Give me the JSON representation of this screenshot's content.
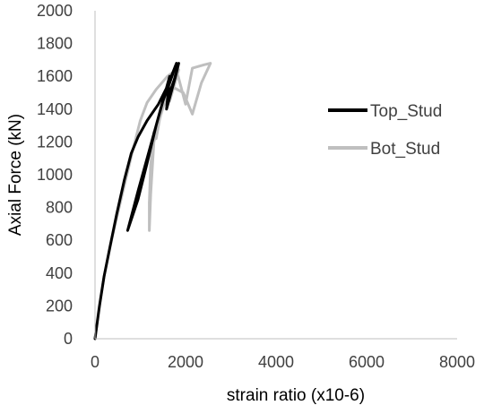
{
  "chart_data": {
    "type": "scatter",
    "title": "",
    "xlabel": "strain ratio (x10-6)",
    "ylabel": "Axial Force (kN)",
    "xlim": [
      0,
      8000
    ],
    "ylim": [
      0,
      2000
    ],
    "x_ticks": [
      0,
      2000,
      4000,
      6000,
      8000
    ],
    "y_ticks": [
      0,
      200,
      400,
      600,
      800,
      1000,
      1200,
      1400,
      1600,
      1800,
      2000
    ],
    "grid": false,
    "legend_position": "right",
    "series": [
      {
        "name": "Top_Stud",
        "color": "#000000",
        "points": [
          [
            0,
            0
          ],
          [
            100,
            200
          ],
          [
            200,
            380
          ],
          [
            330,
            560
          ],
          [
            480,
            760
          ],
          [
            650,
            970
          ],
          [
            800,
            1130
          ],
          [
            950,
            1230
          ],
          [
            1150,
            1330
          ],
          [
            1400,
            1430
          ],
          [
            1600,
            1540
          ],
          [
            1800,
            1680
          ],
          [
            1650,
            1560
          ],
          [
            1500,
            1450
          ],
          [
            1350,
            1300
          ],
          [
            1150,
            1070
          ],
          [
            950,
            850
          ],
          [
            720,
            660
          ],
          [
            950,
            900
          ],
          [
            1200,
            1150
          ],
          [
            1450,
            1400
          ],
          [
            1650,
            1600
          ],
          [
            1580,
            1400
          ],
          [
            1650,
            1470
          ],
          [
            1780,
            1600
          ],
          [
            1850,
            1680
          ],
          [
            1750,
            1580
          ],
          [
            1650,
            1500
          ]
        ]
      },
      {
        "name": "Bot_Stud",
        "color": "#bfbfbf",
        "points": [
          [
            0,
            0
          ],
          [
            80,
            170
          ],
          [
            200,
            380
          ],
          [
            380,
            620
          ],
          [
            600,
            880
          ],
          [
            800,
            1110
          ],
          [
            1000,
            1330
          ],
          [
            1150,
            1440
          ],
          [
            1350,
            1520
          ],
          [
            1600,
            1600
          ],
          [
            1800,
            1640
          ],
          [
            2000,
            1430
          ],
          [
            2150,
            1650
          ],
          [
            2400,
            1670
          ],
          [
            2550,
            1680
          ],
          [
            2350,
            1560
          ],
          [
            2150,
            1370
          ],
          [
            1950,
            1500
          ],
          [
            1750,
            1530
          ],
          [
            1600,
            1500
          ],
          [
            1450,
            1360
          ],
          [
            1300,
            1200
          ],
          [
            1230,
            880
          ],
          [
            1200,
            660
          ],
          [
            1200,
            830
          ],
          [
            1230,
            1060
          ],
          [
            1300,
            1260
          ],
          [
            1350,
            1220
          ],
          [
            1500,
            1450
          ],
          [
            1680,
            1600
          ],
          [
            1850,
            1640
          ],
          [
            1650,
            1450
          ],
          [
            1550,
            1430
          ]
        ]
      }
    ]
  }
}
